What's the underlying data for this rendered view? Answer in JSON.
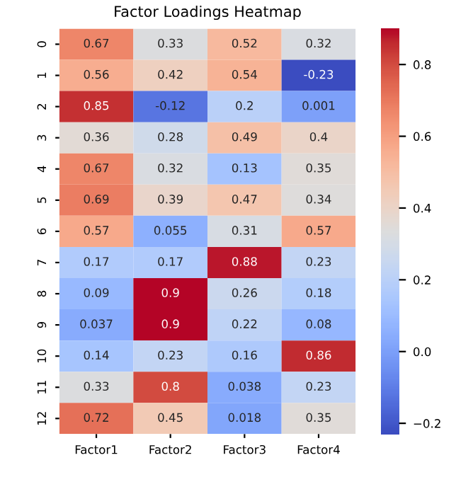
{
  "chart_data": {
    "type": "heatmap",
    "title": "Factor Loadings Heatmap",
    "categories": [
      "Factor1",
      "Factor2",
      "Factor3",
      "Factor4"
    ],
    "y_categories": [
      "0",
      "1",
      "2",
      "3",
      "4",
      "5",
      "6",
      "7",
      "8",
      "9",
      "10",
      "11",
      "12"
    ],
    "cells": [
      [
        0.67,
        0.33,
        0.52,
        0.32
      ],
      [
        0.56,
        0.42,
        0.54,
        -0.23
      ],
      [
        0.85,
        -0.12,
        0.2,
        0.001
      ],
      [
        0.36,
        0.28,
        0.49,
        0.4
      ],
      [
        0.67,
        0.32,
        0.13,
        0.35
      ],
      [
        0.69,
        0.39,
        0.47,
        0.34
      ],
      [
        0.57,
        0.055,
        0.31,
        0.57
      ],
      [
        0.17,
        0.17,
        0.88,
        0.23
      ],
      [
        0.09,
        0.9,
        0.26,
        0.18
      ],
      [
        0.037,
        0.9,
        0.22,
        0.08
      ],
      [
        0.14,
        0.23,
        0.16,
        0.86
      ],
      [
        0.33,
        0.8,
        0.038,
        0.23
      ],
      [
        0.72,
        0.45,
        0.018,
        0.35
      ]
    ],
    "clim": [
      -0.23,
      0.9
    ],
    "cticks": [
      {
        "value": -0.2,
        "label": "−0.2"
      },
      {
        "value": 0.0,
        "label": "0.0"
      },
      {
        "value": 0.2,
        "label": "0.2"
      },
      {
        "value": 0.4,
        "label": "0.4"
      },
      {
        "value": 0.6,
        "label": "0.6"
      },
      {
        "value": 0.8,
        "label": "0.8"
      }
    ],
    "data_labels": true
  }
}
